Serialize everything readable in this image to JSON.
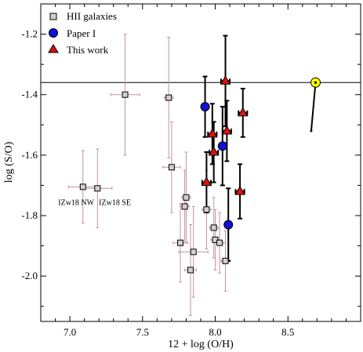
{
  "chart_data": {
    "type": "scatter",
    "xlabel": "12 + log (O/H)",
    "ylabel": "log (S/O)",
    "xlim": [
      6.8,
      9.0
    ],
    "ylim": [
      -2.15,
      -1.1
    ],
    "xticks": [
      7.0,
      7.5,
      8.0,
      8.5
    ],
    "xtick_labels": [
      "7.0",
      "7.5",
      "8.0",
      "8.5"
    ],
    "yticks": [
      -1.2,
      -1.4,
      -1.6,
      -1.8,
      -2.0
    ],
    "ytick_labels": [
      "-1.2",
      "-1.4",
      "-1.6",
      "-1.8",
      "-2.0"
    ],
    "grid": false,
    "legend_position": "top-left",
    "reference_line_y": -1.36,
    "colors": {
      "hii": "#d0d0d0",
      "hii_error": "#c4939b",
      "paper1": "#1010d8",
      "thiswork": "#dd1010",
      "sun": "#ffff00"
    },
    "series": [
      {
        "name": "HII galaxies",
        "marker": "square",
        "points": [
          {
            "x": 7.09,
            "y": -1.705,
            "xerr": 0.1,
            "yerr": 0.12
          },
          {
            "x": 7.19,
            "y": -1.71,
            "xerr": 0.1,
            "yerr": 0.13
          },
          {
            "x": 7.38,
            "y": -1.4,
            "xerr": 0.1,
            "yerr": 0.2
          },
          {
            "x": 7.68,
            "y": -1.41,
            "xerr": 0.03,
            "yerr": 0.2
          },
          {
            "x": 7.7,
            "y": -1.64,
            "xerr": 0.06,
            "yerr": 0.15
          },
          {
            "x": 7.8,
            "y": -1.74,
            "xerr": 0.03,
            "yerr": 0.15
          },
          {
            "x": 7.79,
            "y": -1.77,
            "xerr": 0.03,
            "yerr": 0.12
          },
          {
            "x": 7.76,
            "y": -1.89,
            "xerr": 0.05,
            "yerr": 0.13
          },
          {
            "x": 7.85,
            "y": -1.92,
            "xerr": 0.1,
            "yerr": 0.15
          },
          {
            "x": 7.83,
            "y": -1.98,
            "xerr": 0.04,
            "yerr": 0.15
          },
          {
            "x": 7.94,
            "y": -1.78,
            "xerr": 0.03,
            "yerr": 0.13
          },
          {
            "x": 7.99,
            "y": -1.84,
            "xerr": 0.03,
            "yerr": 0.1
          },
          {
            "x": 8.0,
            "y": -1.88,
            "xerr": 0.03,
            "yerr": 0.1
          },
          {
            "x": 8.03,
            "y": -1.89,
            "xerr": 0.03,
            "yerr": 0.1
          },
          {
            "x": 8.07,
            "y": -1.95,
            "xerr": 0.03,
            "yerr": 0.1
          }
        ]
      },
      {
        "name": "Paper I",
        "marker": "circle",
        "points": [
          {
            "x": 7.93,
            "y": -1.44,
            "xerr": 0.02,
            "yerr": 0.1
          },
          {
            "x": 8.05,
            "y": -1.57,
            "xerr": 0.02,
            "yerr": 0.13
          },
          {
            "x": 8.09,
            "y": -1.83,
            "xerr": 0.02,
            "yerr": 0.12
          }
        ]
      },
      {
        "name": "This work",
        "marker": "triangle",
        "points": [
          {
            "x": 8.07,
            "y": -1.355,
            "xerr": 0.03,
            "yerr": 0.15
          },
          {
            "x": 8.19,
            "y": -1.46,
            "xerr": 0.03,
            "yerr": 0.08
          },
          {
            "x": 8.08,
            "y": -1.52,
            "xerr": 0.03,
            "yerr": 0.1
          },
          {
            "x": 7.98,
            "y": -1.53,
            "xerr": 0.03,
            "yerr": 0.1
          },
          {
            "x": 7.99,
            "y": -1.59,
            "xerr": 0.03,
            "yerr": 0.1
          },
          {
            "x": 7.94,
            "y": -1.69,
            "xerr": 0.03,
            "yerr": 0.1
          },
          {
            "x": 8.17,
            "y": -1.72,
            "xerr": 0.03,
            "yerr": 0.09
          }
        ]
      }
    ],
    "sun": {
      "x": 8.69,
      "y": -1.36,
      "track_end": {
        "x": 8.66,
        "y": -1.52
      }
    },
    "annotations": [
      {
        "text": "IZw18 NW",
        "x": 6.92,
        "y": -1.765
      },
      {
        "text": "IZw18 SE",
        "x": 7.2,
        "y": -1.765
      }
    ]
  }
}
